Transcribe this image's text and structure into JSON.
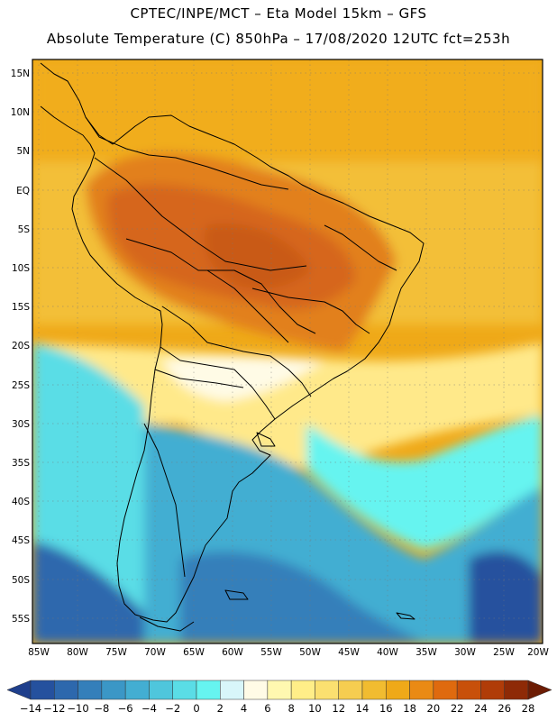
{
  "header": {
    "line1": "CPTEC/INPE/MCT –  Eta Model 15km – GFS",
    "line2": "Absolute Temperature (C) 850hPa – 17/08/2020 12UTC fct=253h"
  },
  "map": {
    "lat_labels": [
      "15N",
      "10N",
      "5N",
      "EQ",
      "5S",
      "10S",
      "15S",
      "20S",
      "25S",
      "30S",
      "35S",
      "40S",
      "45S",
      "50S",
      "55S"
    ],
    "lon_labels": [
      "85W",
      "80W",
      "75W",
      "70W",
      "65W",
      "60W",
      "55W",
      "50W",
      "45W",
      "40W",
      "35W",
      "30W",
      "25W",
      "20W"
    ],
    "lat_range": [
      15,
      -57
    ],
    "lon_range": [
      -85,
      -20
    ],
    "grid": "dotted"
  },
  "colorbar": {
    "labels": [
      "-14",
      "-12",
      "-10",
      "-8",
      "-6",
      "-4",
      "-2",
      "0",
      "2",
      "4",
      "6",
      "8",
      "10",
      "12",
      "14",
      "16",
      "18",
      "20",
      "22",
      "24",
      "26",
      "28"
    ],
    "colors": [
      "#1f3f8c",
      "#25519e",
      "#2d68ad",
      "#347fba",
      "#3b97c6",
      "#43aed2",
      "#4fc6dc",
      "#5adde6",
      "#66f4f0",
      "#d8f6fa",
      "#fffbe6",
      "#fff8b0",
      "#ffee88",
      "#fbe070",
      "#f6cd50",
      "#f1bc30",
      "#efa918",
      "#ea8a14",
      "#df6a0e",
      "#c8500a",
      "#b03c08",
      "#8e2a06",
      "#6c1c04"
    ]
  }
}
